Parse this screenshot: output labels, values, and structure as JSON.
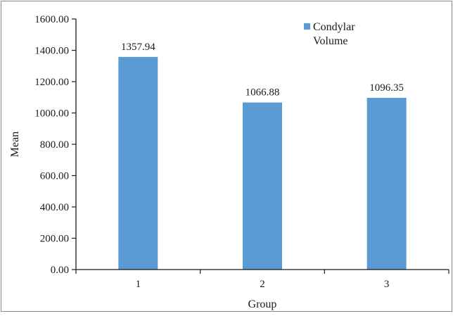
{
  "chart_data": {
    "type": "bar",
    "categories": [
      "1",
      "2",
      "3"
    ],
    "series": [
      {
        "name": "Condylar Volume",
        "values": [
          1357.94,
          1066.88,
          1096.35
        ]
      }
    ],
    "data_labels": [
      "1357.94",
      "1066.88",
      "1096.35"
    ],
    "xlabel": "Group",
    "ylabel": "Mean",
    "ylim": [
      0,
      1600
    ],
    "y_ticks": [
      "0.00",
      "200.00",
      "400.00",
      "600.00",
      "800.00",
      "1000.00",
      "1200.00",
      "1400.00",
      "1600.00"
    ],
    "legend": {
      "line1": "Condylar",
      "line2": "Volume",
      "placement": "top-right"
    },
    "grid": false,
    "colors": {
      "bar": "#5b9bd5",
      "axis": "#1a1a1a",
      "border": "#888888"
    }
  }
}
